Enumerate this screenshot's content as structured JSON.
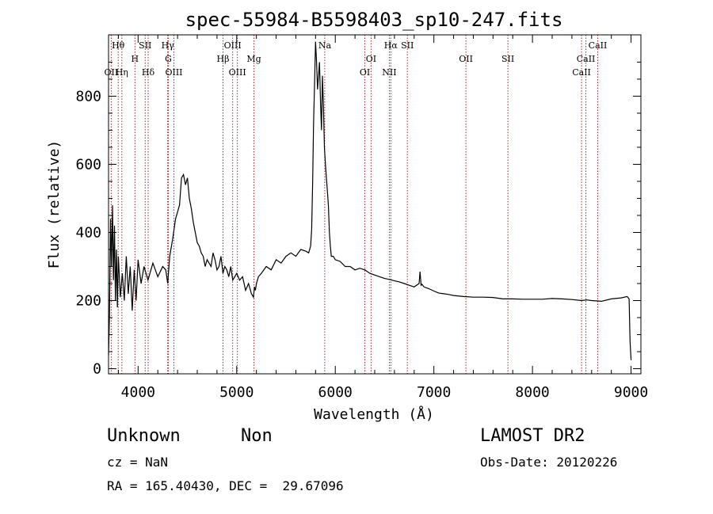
{
  "chart_data": {
    "type": "line",
    "title": "spec-55984-B5598403_sp10-247.fits",
    "xlabel": "Wavelength (Å)",
    "ylabel": "Flux (relative)",
    "xlim": [
      3700,
      9100
    ],
    "ylim": [
      -15,
      980
    ],
    "x_ticks": [
      4000,
      5000,
      6000,
      7000,
      8000,
      9000
    ],
    "y_ticks": [
      0,
      200,
      400,
      600,
      800
    ],
    "grid": false,
    "series": [
      {
        "x": [
          3700,
          3710,
          3720,
          3730,
          3740,
          3750,
          3760,
          3770,
          3780,
          3790,
          3800,
          3820,
          3840,
          3860,
          3880,
          3900,
          3920,
          3940,
          3960,
          3980,
          4000,
          4030,
          4060,
          4100,
          4150,
          4200,
          4250,
          4280,
          4300,
          4320,
          4350,
          4380,
          4400,
          4420,
          4440,
          4460,
          4480,
          4500,
          4520,
          4540,
          4560,
          4580,
          4600,
          4620,
          4640,
          4660,
          4680,
          4700,
          4720,
          4740,
          4760,
          4780,
          4800,
          4820,
          4840,
          4860,
          4880,
          4900,
          4920,
          4940,
          4960,
          4980,
          5000,
          5030,
          5060,
          5090,
          5120,
          5150,
          5170,
          5180,
          5190,
          5200,
          5220,
          5250,
          5300,
          5350,
          5400,
          5450,
          5500,
          5550,
          5600,
          5650,
          5700,
          5730,
          5750,
          5760,
          5770,
          5780,
          5790,
          5800,
          5810,
          5820,
          5830,
          5840,
          5850,
          5860,
          5870,
          5880,
          5890,
          5900,
          5910,
          5920,
          5930,
          5940,
          5950,
          5960,
          5980,
          6000,
          6050,
          6100,
          6150,
          6200,
          6250,
          6300,
          6350,
          6400,
          6450,
          6500,
          6550,
          6600,
          6650,
          6700,
          6750,
          6800,
          6850,
          6860,
          6870,
          6880,
          6900,
          6950,
          7000,
          7050,
          7100,
          7150,
          7200,
          7300,
          7400,
          7500,
          7600,
          7700,
          7800,
          7900,
          8000,
          8100,
          8200,
          8300,
          8400,
          8500,
          8550,
          8600,
          8700,
          8800,
          8900,
          8960,
          8980,
          8990,
          9000
        ],
        "y": [
          40,
          160,
          440,
          300,
          480,
          260,
          420,
          200,
          350,
          180,
          330,
          210,
          280,
          200,
          330,
          220,
          300,
          170,
          290,
          200,
          320,
          250,
          300,
          260,
          310,
          270,
          300,
          290,
          250,
          330,
          380,
          440,
          460,
          480,
          560,
          570,
          540,
          560,
          500,
          470,
          430,
          400,
          370,
          360,
          340,
          330,
          300,
          320,
          310,
          300,
          340,
          320,
          290,
          300,
          330,
          280,
          300,
          290,
          270,
          300,
          260,
          270,
          280,
          260,
          270,
          230,
          250,
          220,
          210,
          240,
          230,
          250,
          270,
          280,
          300,
          290,
          320,
          310,
          330,
          340,
          330,
          350,
          345,
          340,
          360,
          410,
          540,
          720,
          840,
          960,
          900,
          820,
          860,
          900,
          780,
          700,
          860,
          770,
          650,
          600,
          560,
          520,
          480,
          400,
          360,
          330,
          330,
          320,
          315,
          300,
          300,
          290,
          295,
          290,
          280,
          275,
          270,
          265,
          262,
          258,
          255,
          250,
          245,
          240,
          250,
          285,
          245,
          248,
          240,
          235,
          228,
          222,
          220,
          218,
          215,
          212,
          210,
          210,
          209,
          205,
          205,
          204,
          204,
          204,
          206,
          205,
          203,
          200,
          202,
          200,
          198,
          205,
          208,
          212,
          205,
          80,
          25
        ]
      }
    ],
    "annotations": [
      {
        "label": "OII",
        "wavelength": 3727,
        "row": 3
      },
      {
        "label": "Hθ",
        "wavelength": 3798,
        "row": 1
      },
      {
        "label": "Hη",
        "wavelength": 3835,
        "row": 3
      },
      {
        "label": "H",
        "wavelength": 3968,
        "row": 2
      },
      {
        "label": "SII",
        "wavelength": 4072,
        "row": 1
      },
      {
        "label": "Hδ",
        "wavelength": 4102,
        "row": 3
      },
      {
        "label": "Hγ",
        "wavelength": 4300,
        "row": 1
      },
      {
        "label": "G",
        "wavelength": 4307,
        "row": 2
      },
      {
        "label": "OIII",
        "wavelength": 4363,
        "row": 3
      },
      {
        "label": "Hβ",
        "wavelength": 4861,
        "row": 2
      },
      {
        "label": "OIII",
        "wavelength": 4959,
        "row": 1
      },
      {
        "label": "OIII",
        "wavelength": 5007,
        "row": 3
      },
      {
        "label": "Mg",
        "wavelength": 5175,
        "row": 2
      },
      {
        "label": "Na",
        "wavelength": 5893,
        "row": 1
      },
      {
        "label": "OI",
        "wavelength": 6300,
        "row": 3
      },
      {
        "label": "OI",
        "wavelength": 6363,
        "row": 2
      },
      {
        "label": "NII",
        "wavelength": 6548,
        "row": 3
      },
      {
        "label": "Hα",
        "wavelength": 6563,
        "row": 1
      },
      {
        "label": "SII",
        "wavelength": 6731,
        "row": 1
      },
      {
        "label": "OII",
        "wavelength": 7325,
        "row": 2
      },
      {
        "label": "SII",
        "wavelength": 7751,
        "row": 2
      },
      {
        "label": "CaII",
        "wavelength": 8498,
        "row": 3
      },
      {
        "label": "CaII",
        "wavelength": 8542,
        "row": 2
      },
      {
        "label": "CaII",
        "wavelength": 8662,
        "row": 1
      }
    ]
  },
  "info": {
    "object_class": "Unknown",
    "subclass": "Non",
    "survey": "LAMOST DR2",
    "redshift": "cz = NaN",
    "obs_date": "Obs-Date: 20120226",
    "coords": "RA = 165.40430, DEC =  29.67096"
  }
}
